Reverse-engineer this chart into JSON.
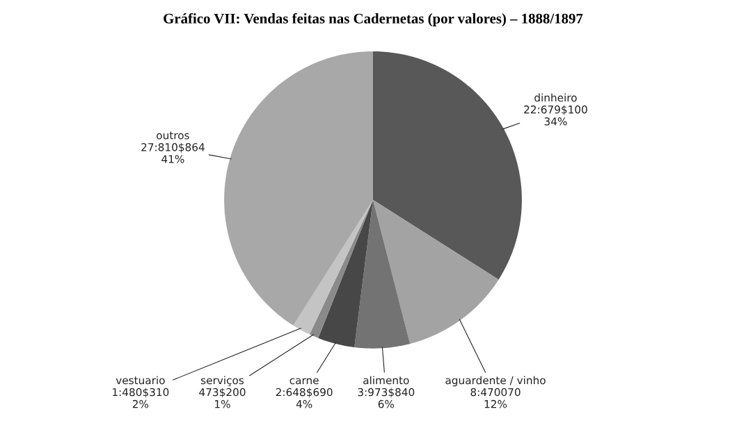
{
  "chart_data": {
    "type": "pie",
    "title": "Gráfico VII: Vendas feitas nas Cadernetas (por valores) – 1888/1897",
    "categories": [
      "dinheiro\n22:679$100",
      "aguardente / vinho\n8:470070",
      "alimento\n3:973$840",
      "carne\n2:648$690",
      "serviços\n473$200",
      "vestuario\n1:480$310",
      "outros\n27:810$864"
    ],
    "values": [
      34,
      12,
      6,
      4,
      1,
      2,
      41
    ],
    "value_labels": [
      "34%",
      "12%",
      "6%",
      "4%",
      "1%",
      "2%",
      "41%"
    ],
    "colors": [
      "#585858",
      "#a3a3a3",
      "#737373",
      "#474747",
      "#8a8a8a",
      "#c4c4c4",
      "#a8a8a8"
    ]
  }
}
